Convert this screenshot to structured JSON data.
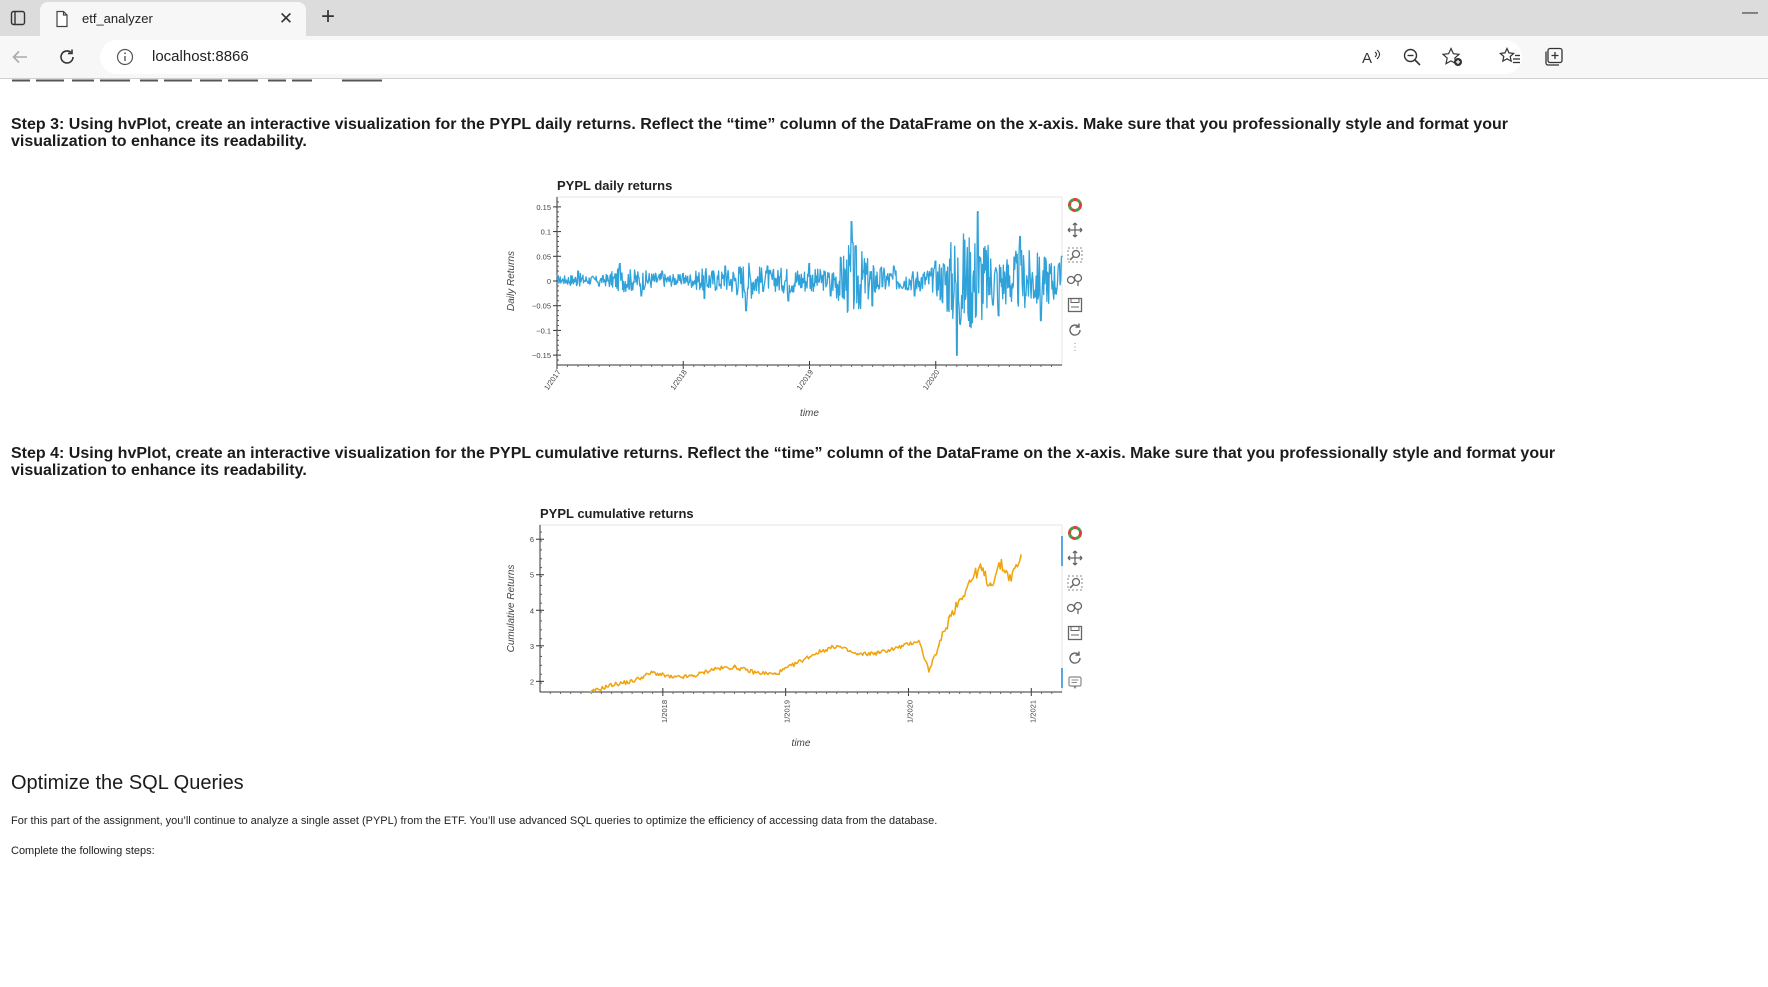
{
  "browser": {
    "tab_title": "etf_analyzer",
    "url": "localhost:8866",
    "icons": [
      "tab-actions-icon",
      "page-icon",
      "close-icon",
      "plus-icon",
      "back-arrow-icon",
      "refresh-icon",
      "info-icon",
      "read-aloud-icon",
      "zoom-out-icon",
      "add-favorite-icon",
      "favorites-icon",
      "collections-icon"
    ]
  },
  "steps": {
    "step3": "Step 3: Using hvPlot, create an interactive visualization for the PYPL daily returns. Reflect the “time” column of the DataFrame on the x-axis. Make sure that you professionally style and format your visualization to enhance its readability.",
    "step4": "Step 4: Using hvPlot, create an interactive visualization for the PYPL cumulative returns. Reflect the “time” column of the DataFrame on the x-axis. Make sure that you professionally style and format your visualization to enhance its readability."
  },
  "section": {
    "heading": "Optimize the SQL Queries",
    "para1": "For this part of the assignment, you’ll continue to analyze a single asset (PYPL) from the ETF. You’ll use advanced SQL queries to optimize the efficiency of accessing data from the database.",
    "para2": "Complete the following steps:"
  },
  "toolbar_tools": [
    "bokeh-logo-icon",
    "pan-tool-icon",
    "box-zoom-tool-icon",
    "wheel-zoom-tool-icon",
    "save-tool-icon",
    "reset-tool-icon"
  ],
  "chart_data": [
    {
      "type": "line",
      "title": "PYPL daily returns",
      "xlabel": "time",
      "ylabel": "Daily Returns",
      "x_range": [
        "2017-01",
        "2021-01"
      ],
      "x_ticks": [
        "1/2017",
        "1/2018",
        "1/2019",
        "1/2020"
      ],
      "y_ticks": [
        "0.15",
        "0.1",
        "0.05",
        "0",
        "−0.05",
        "−0.1",
        "−0.15"
      ],
      "ylim": [
        -0.17,
        0.17
      ],
      "color": "#30a2da",
      "series": [
        {
          "x": [
            "2017-01",
            "2017-03",
            "2017-05",
            "2017-07",
            "2017-09",
            "2017-11",
            "2018-01",
            "2018-03",
            "2018-05",
            "2018-07",
            "2018-09",
            "2018-11",
            "2019-01",
            "2019-03",
            "2019-05",
            "2019-07",
            "2019-09",
            "2019-11",
            "2020-01",
            "2020-03",
            "2020-05",
            "2020-07",
            "2020-09",
            "2020-11",
            "2021-01"
          ],
          "y": [
            0.01,
            0.02,
            -0.01,
            0.035,
            -0.03,
            0.02,
            0.015,
            -0.035,
            0.03,
            -0.06,
            0.03,
            -0.04,
            0.035,
            -0.03,
            0.12,
            -0.05,
            0.03,
            -0.03,
            0.04,
            -0.15,
            0.14,
            -0.07,
            0.09,
            -0.08,
            0.05
          ]
        }
      ]
    },
    {
      "type": "line",
      "title": "PYPL cumulative returns",
      "xlabel": "time",
      "ylabel": "Cumulative Returns",
      "x_range": [
        "2017-01",
        "2021-04"
      ],
      "x_ticks": [
        "1/2018",
        "1/2019",
        "1/2020",
        "1/2021"
      ],
      "y_ticks": [
        "2",
        "3",
        "4",
        "5",
        "6"
      ],
      "ylim": [
        1.7,
        6.4
      ],
      "color": "#f0a30a",
      "series": [
        {
          "x": [
            "2017-06",
            "2017-08",
            "2017-10",
            "2017-12",
            "2018-02",
            "2018-04",
            "2018-06",
            "2018-08",
            "2018-10",
            "2018-12",
            "2019-02",
            "2019-04",
            "2019-06",
            "2019-08",
            "2019-10",
            "2019-12",
            "2020-02",
            "2020-03",
            "2020-04",
            "2020-05",
            "2020-06",
            "2020-07",
            "2020-08",
            "2020-09",
            "2020-10",
            "2020-11",
            "2020-12"
          ],
          "y": [
            1.7,
            1.9,
            2.0,
            2.25,
            2.1,
            2.15,
            2.35,
            2.4,
            2.25,
            2.2,
            2.5,
            2.8,
            3.0,
            2.75,
            2.8,
            2.95,
            3.15,
            2.3,
            3.0,
            3.8,
            4.3,
            4.8,
            5.2,
            4.7,
            5.3,
            4.9,
            5.5
          ]
        }
      ]
    }
  ]
}
